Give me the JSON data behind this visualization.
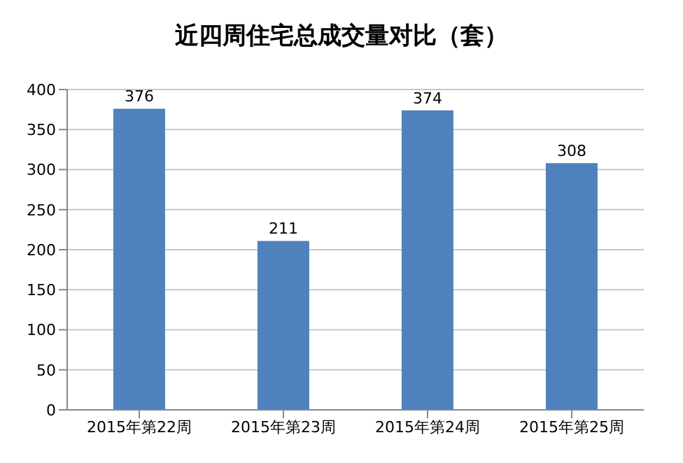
{
  "chart_data": {
    "type": "bar",
    "title": "近四周住宅总成交量对比（套）",
    "categories": [
      "2015年第22周",
      "2015年第23周",
      "2015年第24周",
      "2015年第25周"
    ],
    "values": [
      376,
      211,
      374,
      308
    ],
    "color": "#4f81bd",
    "ylim": [
      0,
      400
    ],
    "yticks": [
      0,
      50,
      100,
      150,
      200,
      250,
      300,
      350,
      400
    ],
    "grid": "y",
    "data_labels": true
  }
}
